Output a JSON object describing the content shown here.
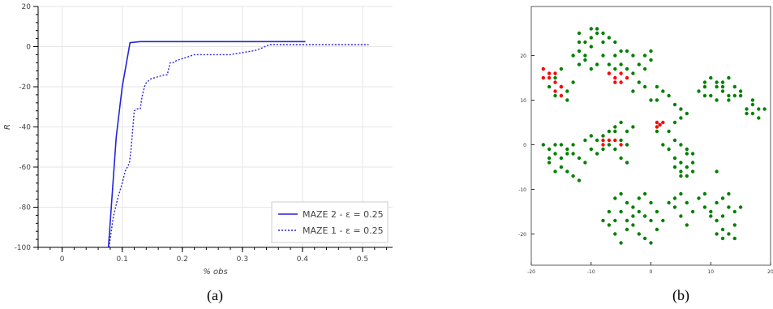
{
  "captions": {
    "a": "(a)",
    "b": "(b)"
  },
  "chart_data": [
    {
      "type": "line",
      "xlabel": "% obs",
      "ylabel": "R",
      "xlim": [
        -0.04,
        0.55
      ],
      "ylim": [
        -100,
        20
      ],
      "xticks": [
        "0",
        "0.1",
        "0.2",
        "0.3",
        "0.4",
        "0.5"
      ],
      "xtick_values": [
        0,
        0.1,
        0.2,
        0.3,
        0.4,
        0.5
      ],
      "yticks": [
        "20",
        "0",
        "-20",
        "-40",
        "-60",
        "-80",
        "-100"
      ],
      "ytick_values": [
        20,
        0,
        -20,
        -40,
        -60,
        -80,
        -100
      ],
      "grid": true,
      "legend_position": "bottom-right",
      "series": [
        {
          "name": "MAZE 2 - ε = 0.25",
          "color": "#2424d8",
          "style": "solid",
          "x": [
            0.077,
            0.09,
            0.1,
            0.113,
            0.13,
            0.2,
            0.3,
            0.405
          ],
          "y": [
            -100,
            -45,
            -20,
            2,
            2.5,
            2.5,
            2.5,
            2.5
          ]
        },
        {
          "name": "MAZE 1 - ε = 0.25",
          "color": "#2424d8",
          "style": "dotted",
          "x": [
            0.078,
            0.085,
            0.093,
            0.1,
            0.105,
            0.112,
            0.115,
            0.12,
            0.125,
            0.13,
            0.133,
            0.137,
            0.14,
            0.148,
            0.16,
            0.17,
            0.175,
            0.18,
            0.185,
            0.19,
            0.2,
            0.21,
            0.22,
            0.25,
            0.28,
            0.3,
            0.32,
            0.33,
            0.345,
            0.4,
            0.45,
            0.51
          ],
          "y": [
            -100,
            -85,
            -75,
            -68,
            -62,
            -58,
            -50,
            -32,
            -31,
            -31,
            -25,
            -20,
            -18,
            -16,
            -15,
            -14,
            -14,
            -8,
            -8,
            -7,
            -6,
            -5,
            -4,
            -4,
            -4,
            -3,
            -2,
            -1,
            1,
            1,
            1,
            1
          ]
        }
      ]
    },
    {
      "type": "scatter",
      "xlim": [
        -20,
        20
      ],
      "ylim": [
        -27,
        31
      ],
      "xticks": [
        "-20",
        "-10",
        "0",
        "10",
        "20"
      ],
      "xtick_values": [
        -20,
        -10,
        0,
        10,
        20
      ],
      "yticks": [
        "20",
        "10",
        "0",
        "-10",
        "-20"
      ],
      "ytick_values": [
        20,
        10,
        0,
        -10,
        -20
      ],
      "grid": false,
      "series": [
        {
          "color": "#008000",
          "points": [
            [
              -12,
              21
            ],
            [
              -11,
              23
            ],
            [
              -10,
              24
            ],
            [
              -9,
              25
            ],
            [
              -10,
              22
            ],
            [
              -8,
              20
            ],
            [
              -11,
              19
            ],
            [
              -9,
              18
            ],
            [
              -8,
              23
            ],
            [
              -7,
              24
            ],
            [
              -6,
              20
            ],
            [
              -5,
              21
            ],
            [
              -7,
              18
            ],
            [
              -6,
              17
            ],
            [
              -12,
              18
            ],
            [
              -10,
              17
            ],
            [
              -4,
              21
            ],
            [
              -3,
              20
            ],
            [
              -2,
              18
            ],
            [
              -1,
              17
            ],
            [
              0,
              21
            ],
            [
              0,
              19
            ],
            [
              -1,
              20
            ],
            [
              -9,
              26
            ],
            [
              -10,
              26
            ],
            [
              -11,
              20
            ],
            [
              -12,
              25
            ],
            [
              -13,
              20
            ],
            [
              -12,
              23
            ],
            [
              -8,
              25
            ],
            [
              -6,
              23
            ],
            [
              -5,
              18
            ],
            [
              -4,
              17
            ],
            [
              -16,
              15
            ],
            [
              -17,
              13
            ],
            [
              -15,
              13
            ],
            [
              -16,
              11
            ],
            [
              -14,
              12
            ],
            [
              -13,
              14
            ],
            [
              -15,
              17
            ],
            [
              -14,
              10
            ],
            [
              -3,
              16
            ],
            [
              -2,
              14
            ],
            [
              -3,
              12
            ],
            [
              -1,
              13
            ],
            [
              0,
              10
            ],
            [
              1,
              10
            ],
            [
              1,
              13
            ],
            [
              2,
              12
            ],
            [
              3,
              11
            ],
            [
              4,
              9
            ],
            [
              5,
              8
            ],
            [
              6,
              7
            ],
            [
              5,
              6
            ],
            [
              4,
              5
            ],
            [
              8,
              12
            ],
            [
              9,
              14
            ],
            [
              10,
              15
            ],
            [
              11,
              13
            ],
            [
              12,
              12
            ],
            [
              13,
              11
            ],
            [
              14,
              13
            ],
            [
              10,
              11
            ],
            [
              11,
              10
            ],
            [
              13,
              10
            ],
            [
              15,
              12
            ],
            [
              12,
              14
            ],
            [
              9,
              11
            ],
            [
              14,
              11
            ],
            [
              12,
              13
            ],
            [
              11,
              14
            ],
            [
              13,
              15
            ],
            [
              15,
              11
            ],
            [
              9,
              13
            ],
            [
              16,
              8
            ],
            [
              17,
              9
            ],
            [
              18,
              8
            ],
            [
              17,
              7
            ],
            [
              18,
              6
            ],
            [
              16,
              7
            ],
            [
              17,
              10
            ],
            [
              19,
              8
            ],
            [
              -18,
              0
            ],
            [
              -17,
              -1
            ],
            [
              -16,
              -2
            ],
            [
              -15,
              -3
            ],
            [
              -17,
              -4
            ],
            [
              -16,
              0
            ],
            [
              -14,
              -1
            ],
            [
              -13,
              -2
            ],
            [
              -15,
              -5
            ],
            [
              -14,
              -6
            ],
            [
              -13,
              -7
            ],
            [
              -12,
              -8
            ],
            [
              -12,
              -3
            ],
            [
              -11,
              -4
            ],
            [
              -13,
              0
            ],
            [
              -16,
              -6
            ],
            [
              -17,
              -3
            ],
            [
              -15,
              0
            ],
            [
              -14,
              -2
            ],
            [
              -10,
              -1
            ],
            [
              -9,
              1
            ],
            [
              -8,
              2
            ],
            [
              -7,
              3
            ],
            [
              -6,
              4
            ],
            [
              -5,
              5
            ],
            [
              -4,
              3
            ],
            [
              -5,
              1
            ],
            [
              -6,
              -1
            ],
            [
              -9,
              -2
            ],
            [
              -10,
              2
            ],
            [
              -7,
              0
            ],
            [
              -4,
              0
            ],
            [
              -5,
              -3
            ],
            [
              -4,
              -4
            ],
            [
              -6,
              3
            ],
            [
              -3,
              4
            ],
            [
              -11,
              1
            ],
            [
              -8,
              -1
            ],
            [
              3,
              3
            ],
            [
              4,
              1
            ],
            [
              5,
              0
            ],
            [
              6,
              -1
            ],
            [
              7,
              -2
            ],
            [
              5,
              -4
            ],
            [
              4,
              -3
            ],
            [
              6,
              -5
            ],
            [
              7,
              -6
            ],
            [
              5,
              -7
            ],
            [
              6,
              -7
            ],
            [
              4,
              -5
            ],
            [
              2,
              0
            ],
            [
              3,
              -1
            ],
            [
              7,
              -4
            ],
            [
              5,
              -6
            ],
            [
              6,
              -2
            ],
            [
              1,
              3
            ],
            [
              -6,
              -12
            ],
            [
              -5,
              -11
            ],
            [
              -4,
              -13
            ],
            [
              -3,
              -14
            ],
            [
              -2,
              -15
            ],
            [
              -1,
              -16
            ],
            [
              0,
              -17
            ],
            [
              -5,
              -15
            ],
            [
              -6,
              -17
            ],
            [
              -7,
              -18
            ],
            [
              -4,
              -19
            ],
            [
              -3,
              -18
            ],
            [
              -2,
              -20
            ],
            [
              -1,
              -21
            ],
            [
              0,
              -22
            ],
            [
              1,
              -19
            ],
            [
              2,
              -17
            ],
            [
              -6,
              -20
            ],
            [
              -5,
              -22
            ],
            [
              -4,
              -17
            ],
            [
              -3,
              -16
            ],
            [
              -2,
              -12
            ],
            [
              -1,
              -11
            ],
            [
              0,
              -13
            ],
            [
              1,
              -15
            ],
            [
              -7,
              -15
            ],
            [
              -8,
              -17
            ],
            [
              3,
              -13
            ],
            [
              4,
              -14
            ],
            [
              5,
              -16
            ],
            [
              6,
              -18
            ],
            [
              4,
              -12
            ],
            [
              7,
              -15
            ],
            [
              6,
              -13
            ],
            [
              5,
              -11
            ],
            [
              8,
              -12
            ],
            [
              9,
              -14
            ],
            [
              10,
              -15
            ],
            [
              11,
              -13
            ],
            [
              12,
              -12
            ],
            [
              13,
              -14
            ],
            [
              14,
              -15
            ],
            [
              11,
              -17
            ],
            [
              12,
              -19
            ],
            [
              13,
              -20
            ],
            [
              14,
              -18
            ],
            [
              12,
              -21
            ],
            [
              11,
              -20
            ],
            [
              10,
              -16
            ],
            [
              15,
              -14
            ],
            [
              13,
              -11
            ],
            [
              9,
              -11
            ],
            [
              11,
              -6
            ],
            [
              12,
              -16
            ],
            [
              14,
              -21
            ]
          ]
        },
        {
          "color": "#ff0000",
          "points": [
            [
              -18,
              17
            ],
            [
              -17,
              16
            ],
            [
              -16,
              16
            ],
            [
              -17,
              15
            ],
            [
              -18,
              15
            ],
            [
              -16,
              14
            ],
            [
              -15,
              13
            ],
            [
              -16,
              12
            ],
            [
              -15,
              11
            ],
            [
              -7,
              16
            ],
            [
              -6,
              15
            ],
            [
              -5,
              16
            ],
            [
              -6,
              14
            ],
            [
              -5,
              14
            ],
            [
              -4,
              15
            ],
            [
              -8,
              0
            ],
            [
              -7,
              1
            ],
            [
              -8,
              1
            ],
            [
              -5,
              0
            ],
            [
              -6,
              1
            ],
            [
              1,
              5
            ],
            [
              1.5,
              4.5
            ],
            [
              2,
              5
            ],
            [
              1,
              4
            ]
          ]
        }
      ]
    }
  ]
}
